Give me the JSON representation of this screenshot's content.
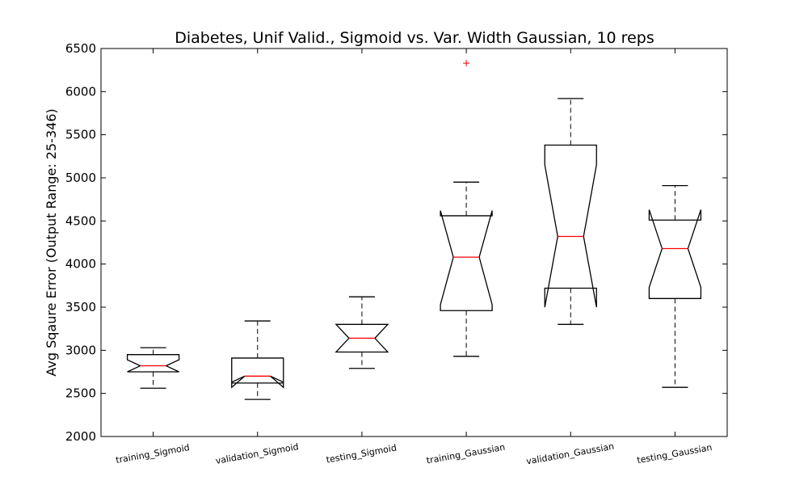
{
  "chart_data": {
    "type": "box",
    "title": "Diabetes, Unif Valid., Sigmoid vs. Var. Width Gaussian, 10 reps",
    "ylabel": "Avg Sqaure Error (Output Range: 25-346)",
    "xlabel": "",
    "ylim": [
      2000,
      6500
    ],
    "yticks": [
      2000,
      2500,
      3000,
      3500,
      4000,
      4500,
      5000,
      5500,
      6000,
      6500
    ],
    "notched": true,
    "colors": {
      "box": "#000000",
      "median": "#ff0000",
      "outlier": "#ff0000"
    },
    "categories": [
      "training_Sigmoid",
      "validation_Sigmoid",
      "testing_Sigmoid",
      "training_Gaussian",
      "validation_Gaussian",
      "testing_Gaussian"
    ],
    "boxes": [
      {
        "whisker_low": 2560,
        "q1": 2750,
        "median": 2820,
        "q3": 2950,
        "whisker_high": 3030,
        "notch_low": 2750,
        "notch_high": 2890,
        "outliers": []
      },
      {
        "whisker_low": 2430,
        "q1": 2620,
        "median": 2700,
        "q3": 2910,
        "whisker_high": 3340,
        "notch_low": 2570,
        "notch_high": 2630,
        "outliers": []
      },
      {
        "whisker_low": 2790,
        "q1": 2980,
        "median": 3140,
        "q3": 3300,
        "whisker_high": 3620,
        "notch_low": 2980,
        "notch_high": 3300,
        "outliers": []
      },
      {
        "whisker_low": 2930,
        "q1": 3460,
        "median": 4080,
        "q3": 4560,
        "whisker_high": 4950,
        "notch_low": 3530,
        "notch_high": 4620,
        "outliers": [
          6330
        ]
      },
      {
        "whisker_low": 3300,
        "q1": 3720,
        "median": 4320,
        "q3": 5380,
        "whisker_high": 5920,
        "notch_low": 3500,
        "notch_high": 5150,
        "outliers": []
      },
      {
        "whisker_low": 2570,
        "q1": 3600,
        "median": 4180,
        "q3": 4510,
        "whisker_high": 4910,
        "notch_low": 3730,
        "notch_high": 4630,
        "outliers": []
      }
    ]
  }
}
